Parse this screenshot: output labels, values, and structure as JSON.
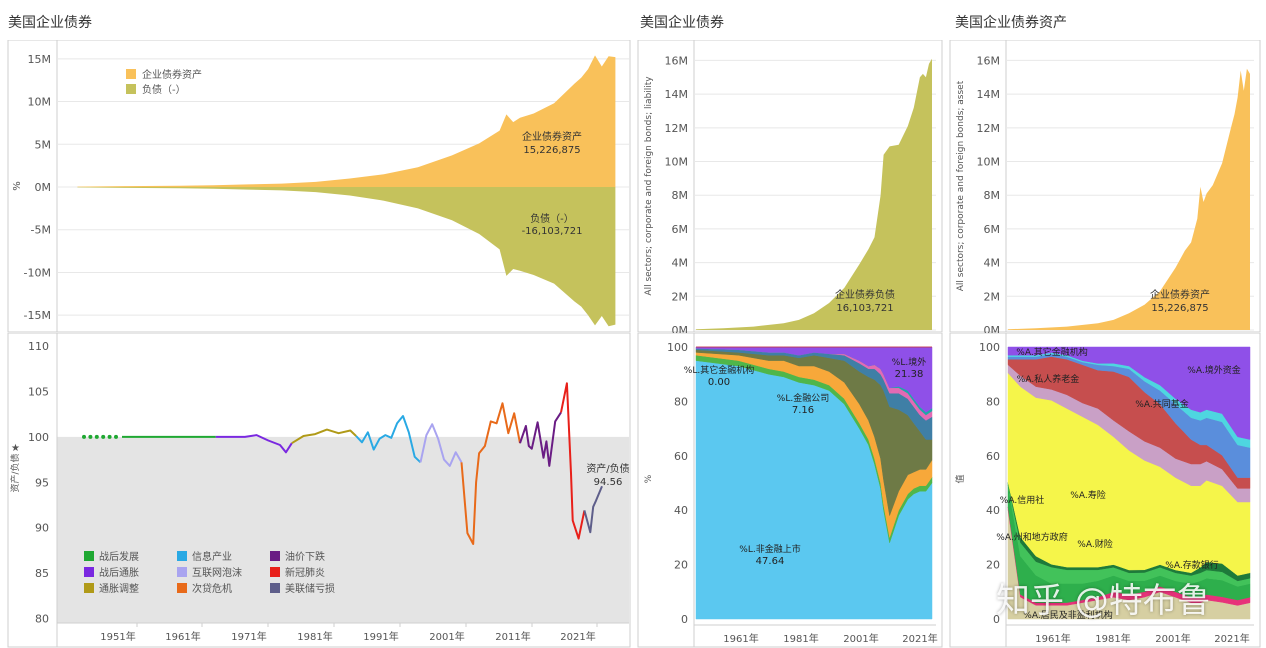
{
  "titles": {
    "left": "美国企业债券",
    "middle": "美国企业债券",
    "right": "美国企业债券资产"
  },
  "colors": {
    "asset": "#F9C15A",
    "liability": "#C5C25C",
    "ratio_background": "#E4E4E4",
    "grid": "#E8E8E8",
    "border": "#CFCFCF"
  },
  "watermark": "知乎 @特布鲁",
  "chart_data": [
    {
      "id": "main-area",
      "type": "area",
      "ylabel": "%",
      "yticks": [
        "15M",
        "10M",
        "5M",
        "0M",
        "-5M",
        "-10M",
        "-15M"
      ],
      "ylim": [
        -16.5,
        16.5
      ],
      "unit": "M",
      "legend": [
        "企业债券资产",
        "负债（-）"
      ],
      "legend_position": "top-left",
      "x": [
        1945,
        1952,
        1960,
        1965,
        1970,
        1975,
        1980,
        1985,
        1990,
        1995,
        2000,
        2004,
        2007,
        2008,
        2009,
        2010,
        2012,
        2015,
        2018,
        2019,
        2020,
        2021,
        2022,
        2023,
        2024
      ],
      "series": [
        {
          "name": "企业债券资产",
          "values": [
            0.05,
            0.1,
            0.15,
            0.2,
            0.3,
            0.4,
            0.6,
            1.0,
            1.5,
            2.3,
            3.7,
            5.1,
            6.6,
            8.5,
            7.6,
            8.1,
            8.6,
            9.8,
            12.1,
            12.8,
            13.8,
            15.4,
            14.1,
            15.3,
            15.2
          ]
        },
        {
          "name": "负债（-）",
          "values": [
            -0.05,
            -0.1,
            -0.15,
            -0.2,
            -0.3,
            -0.4,
            -0.6,
            -1.0,
            -1.6,
            -2.5,
            -3.9,
            -5.5,
            -7.3,
            -10.4,
            -9.6,
            -9.8,
            -10.3,
            -11.3,
            -13.4,
            -14.0,
            -15.0,
            -16.2,
            -15.1,
            -16.3,
            -16.1
          ]
        }
      ],
      "annotations": [
        {
          "label": "企业债券资产",
          "value": "15,226,875"
        },
        {
          "label": "负债（-）",
          "value": "-16,103,721"
        }
      ]
    },
    {
      "id": "ratio-line",
      "type": "line",
      "ylabel": "资产/负债",
      "yticks": [
        "110",
        "105",
        "100",
        "95",
        "90",
        "85",
        "80"
      ],
      "ylim": [
        79.5,
        111
      ],
      "xticks": [
        "1951年",
        "1961年",
        "1971年",
        "1981年",
        "1991年",
        "2001年",
        "2011年",
        "2021年"
      ],
      "xlim": [
        1942,
        2026
      ],
      "reference_line": 100,
      "annotation": {
        "label": "资产/负债",
        "value": "94.56"
      },
      "legend_position": "bottom-left",
      "periods": [
        {
          "name": "战后发展",
          "color": "#1FA832",
          "x": [
            1946,
            1947,
            1948,
            1949,
            1950,
            1951
          ],
          "y": [
            100,
            100,
            100,
            100,
            100,
            100
          ],
          "dotted": true
        },
        {
          "name": "战后发展",
          "color": "#1FA832",
          "x": [
            1952,
            1960,
            1968
          ],
          "y": [
            100,
            100,
            100
          ]
        },
        {
          "name": "战后通胀",
          "color": "#7A28E0",
          "x": [
            1968,
            1973,
            1975,
            1977,
            1979,
            1980,
            1981
          ],
          "y": [
            100,
            100,
            100.2,
            99.6,
            99.1,
            98.3,
            99.3
          ]
        },
        {
          "name": "通胀调整",
          "color": "#B09A18",
          "x": [
            1981,
            1983,
            1985,
            1987,
            1989,
            1991,
            1992
          ],
          "y": [
            99.3,
            100.1,
            100.3,
            100.8,
            100.4,
            100.7,
            100.1
          ]
        },
        {
          "name": "信息产业",
          "color": "#29A9E4",
          "x": [
            1992,
            1993,
            1994,
            1995,
            1996,
            1997,
            1998,
            1999,
            2000,
            2001,
            2002,
            2003
          ],
          "y": [
            100.1,
            99.4,
            100.5,
            98.6,
            99.8,
            100.2,
            99.9,
            101.5,
            102.3,
            100.5,
            97.8,
            97.2
          ]
        },
        {
          "name": "互联网泡沫",
          "color": "#A9A4F0",
          "x": [
            2003,
            2004,
            2005,
            2006,
            2007,
            2008,
            2009,
            2010
          ],
          "y": [
            97.2,
            100.2,
            101.4,
            99.8,
            97.5,
            96.8,
            98.3,
            97.2
          ]
        },
        {
          "name": "次贷危机",
          "color": "#E86A1A",
          "x": [
            2010,
            2011,
            2012,
            2012.5,
            2013,
            2014,
            2015,
            2016,
            2017,
            2018,
            2019,
            2020
          ],
          "y": [
            97.2,
            89.4,
            88.2,
            95.0,
            98.2,
            99.0,
            101.7,
            101.5,
            103.7,
            100.4,
            102.6,
            99.3
          ]
        },
        {
          "name": "油价下跌",
          "color": "#6A1C84",
          "x": [
            2020,
            2021,
            2021.5,
            2022,
            2023,
            2024,
            2024.5,
            2025,
            2026,
            2027
          ],
          "y": [
            99.3,
            101.2,
            99.0,
            98.7,
            101.6,
            97.7,
            99.5,
            96.8,
            101.7,
            102.7
          ]
        },
        {
          "name": "新冠肺炎",
          "color": "#E8201A",
          "x": [
            2027,
            2028,
            2028.7,
            2029,
            2030,
            2031
          ],
          "y": [
            102.7,
            105.9,
            96.0,
            90.8,
            88.8,
            91.9
          ]
        },
        {
          "name": "美联储亏损",
          "color": "#5E5E8A",
          "x": [
            2031,
            2032,
            2032.5,
            2033,
            2034
          ],
          "y": [
            91.9,
            89.5,
            92.3,
            93.0,
            94.56
          ]
        }
      ],
      "legend": [
        "战后发展",
        "信息产业",
        "油价下跌",
        "战后通胀",
        "互联网泡沫",
        "新冠肺炎",
        "通胀调整",
        "次贷危机",
        "美联储亏损"
      ]
    },
    {
      "id": "liability-area",
      "type": "area",
      "ylabel": "All sectors; corporate and foreign bonds; liability",
      "yticks": [
        "16M",
        "14M",
        "12M",
        "10M",
        "8M",
        "6M",
        "4M",
        "2M",
        "0M"
      ],
      "ylim": [
        0,
        16.5
      ],
      "x": [
        1946,
        1955,
        1965,
        1975,
        1980,
        1985,
        1990,
        1995,
        2000,
        2003,
        2005,
        2007,
        2008,
        2010,
        2013,
        2016,
        2018,
        2020,
        2021,
        2022,
        2023,
        2024
      ],
      "values": [
        0.05,
        0.1,
        0.2,
        0.4,
        0.6,
        1.0,
        1.6,
        2.5,
        3.9,
        4.8,
        5.5,
        8.0,
        10.4,
        10.9,
        11.0,
        12.1,
        13.2,
        15.0,
        15.2,
        15.0,
        15.8,
        16.1
      ],
      "annotation": {
        "label": "企业债券负债",
        "value": "16,103,721"
      }
    },
    {
      "id": "asset-area",
      "type": "area",
      "ylabel": "All sectors; corporate and foreign bonds; asset",
      "yticks": [
        "16M",
        "14M",
        "12M",
        "10M",
        "8M",
        "6M",
        "4M",
        "2M",
        "0M"
      ],
      "ylim": [
        0,
        16.5
      ],
      "x": [
        1946,
        1955,
        1965,
        1975,
        1980,
        1985,
        1990,
        1995,
        2000,
        2003,
        2005,
        2007,
        2008,
        2009,
        2010,
        2012,
        2015,
        2018,
        2019,
        2020,
        2021,
        2022,
        2023,
        2024
      ],
      "values": [
        0.05,
        0.1,
        0.2,
        0.4,
        0.6,
        1.0,
        1.5,
        2.3,
        3.7,
        4.7,
        5.2,
        6.6,
        8.5,
        7.6,
        8.1,
        8.6,
        9.9,
        12.1,
        12.8,
        13.8,
        15.4,
        14.2,
        15.5,
        15.2
      ],
      "annotation": {
        "label": "企业债券资产",
        "value": "15,226,875"
      }
    },
    {
      "id": "liability-shares",
      "type": "area",
      "stacked": "percent",
      "ylabel": "%",
      "yticks": [
        "100",
        "80",
        "60",
        "40",
        "20",
        "0"
      ],
      "xticks": [
        "1961年",
        "1981年",
        "2001年",
        "2021年"
      ],
      "xlim": [
        1945,
        2026
      ],
      "x": [
        1946,
        1960,
        1970,
        1975,
        1980,
        1985,
        1990,
        1995,
        2000,
        2003,
        2005,
        2007,
        2008,
        2010,
        2013,
        2016,
        2018,
        2020,
        2022,
        2024
      ],
      "series": [
        {
          "name": "%L.非金融上市",
          "color": "#5BC8F0",
          "values": [
            95,
            93,
            90,
            89,
            87,
            86,
            84,
            79,
            70,
            64,
            57,
            48,
            40,
            28,
            38,
            44,
            46,
            47,
            47,
            47.64
          ]
        },
        {
          "name": "",
          "color": "#4FB64A",
          "values": [
            2,
            2,
            2,
            2,
            2,
            2,
            2,
            2,
            2,
            2,
            2,
            2,
            2,
            2,
            2,
            2,
            2,
            2,
            2,
            2
          ]
        },
        {
          "name": "",
          "color": "#F7A83A",
          "values": [
            1,
            2,
            3,
            4,
            4,
            5,
            5,
            6,
            7,
            7,
            8,
            9,
            9,
            8,
            7,
            7,
            6,
            6,
            6,
            6
          ]
        },
        {
          "name": "%L.金融公司",
          "color": "#6E7A46",
          "values": [
            1,
            1,
            2,
            2,
            3,
            4,
            5,
            8,
            12,
            16,
            21,
            27,
            33,
            40,
            30,
            22,
            18,
            14,
            11,
            7.16
          ]
        },
        {
          "name": "",
          "color": "#3F7FA6",
          "values": [
            0.5,
            1,
            1,
            1,
            1,
            1,
            1.5,
            2,
            3,
            3,
            4,
            4,
            4,
            5,
            6,
            6,
            6,
            6,
            7,
            8
          ]
        },
        {
          "name": "",
          "color": "#E36AB4",
          "values": [
            0,
            0,
            0,
            0,
            0,
            0,
            0,
            0.5,
            1,
            1,
            1.5,
            2,
            2,
            2,
            2,
            2,
            2,
            2,
            2,
            2
          ]
        },
        {
          "name": "",
          "color": "#1FA7A7",
          "values": [
            0,
            0,
            0,
            0,
            0,
            0,
            0,
            0,
            0,
            0,
            0,
            0,
            0,
            0,
            0.5,
            1,
            1,
            1,
            1,
            1
          ]
        },
        {
          "name": "%L.境外",
          "color": "#8F50E8",
          "values": [
            0.5,
            1,
            2,
            2,
            3,
            2,
            2.5,
            2.5,
            5,
            7,
            6.5,
            8,
            10,
            15,
            14.5,
            16,
            19,
            22,
            24,
            21.38
          ]
        },
        {
          "name": "%L.其它金融机构",
          "color": "#C92E2E",
          "values": [
            0,
            0,
            0,
            0,
            0,
            0,
            0,
            0,
            0,
            0,
            0,
            0,
            0,
            0,
            0,
            0,
            0,
            0,
            0,
            0
          ]
        }
      ],
      "labels": [
        {
          "label": "%L.境外",
          "value": "21.38"
        },
        {
          "label": "%L.其它金融机构",
          "value": "0.00"
        },
        {
          "label": "%L.金融公司",
          "value": "7.16"
        },
        {
          "label": "%L.非金融上市",
          "value": "47.64"
        }
      ]
    },
    {
      "id": "asset-shares",
      "type": "area",
      "stacked": "percent",
      "ylabel": "值",
      "yticks": [
        "100",
        "80",
        "60",
        "40",
        "20",
        "0"
      ],
      "xticks": [
        "1961年",
        "1981年",
        "2001年",
        "2021年"
      ],
      "xlim": [
        1945,
        2026
      ],
      "x": [
        1946,
        1950,
        1955,
        1960,
        1965,
        1970,
        1975,
        1980,
        1985,
        1990,
        1995,
        2000,
        2005,
        2008,
        2010,
        2015,
        2020,
        2024
      ],
      "series": [
        {
          "name": "%A.居民及非盈利机构",
          "color": "#D6CFA2",
          "values": [
            40,
            8,
            5,
            5,
            5,
            6,
            7,
            8,
            7,
            8,
            10,
            8,
            6,
            6,
            7,
            6,
            5,
            6
          ]
        },
        {
          "name": "",
          "color": "#E7327A",
          "values": [
            1,
            1,
            1,
            1,
            1,
            1,
            1,
            2,
            2,
            2,
            2,
            2,
            2,
            2,
            2,
            2,
            2,
            2
          ]
        },
        {
          "name": "%A.存款银行",
          "color": "#2EAF4C",
          "values": [
            8,
            14,
            10,
            7,
            7,
            6,
            6,
            6,
            5,
            4,
            4,
            4,
            5,
            6,
            6,
            6,
            5,
            5
          ]
        },
        {
          "name": "%A.州和地方政府",
          "color": "#42C25A",
          "values": [
            0.5,
            5,
            5,
            6,
            5,
            5,
            4,
            3,
            3,
            3,
            3,
            3,
            3,
            3,
            3,
            3,
            2,
            2
          ]
        },
        {
          "name": "%A.信用社",
          "color": "#1E7A3A",
          "values": [
            0.5,
            2,
            2,
            1,
            1,
            1,
            1,
            1,
            1,
            1,
            1,
            1,
            1,
            2,
            3,
            3,
            2,
            2
          ]
        },
        {
          "name": "%A.寿险",
          "color": "#F5F54A",
          "values": [
            40,
            55,
            58,
            60,
            58,
            55,
            52,
            47,
            44,
            40,
            36,
            34,
            32,
            30,
            30,
            28,
            27,
            26
          ]
        },
        {
          "name": "%A.财险",
          "color": "#C9A0C6",
          "values": [
            3,
            4,
            4,
            4,
            5,
            5,
            6,
            6,
            7,
            7,
            7,
            7,
            8,
            8,
            7,
            6,
            5,
            5
          ]
        },
        {
          "name": "%A.私人养老金",
          "color": "#C64E4E",
          "values": [
            2,
            6,
            10,
            12,
            13,
            14,
            14,
            18,
            20,
            18,
            16,
            13,
            9,
            7,
            6,
            5,
            4,
            4
          ]
        },
        {
          "name": "%A.共同基金",
          "color": "#5A8EDC",
          "values": [
            1,
            1,
            1,
            1,
            1,
            1,
            2,
            2,
            3,
            4,
            5,
            7,
            8,
            9,
            10,
            12,
            12,
            11
          ]
        },
        {
          "name": "",
          "color": "#4ED6E0",
          "values": [
            0.5,
            0.5,
            0.5,
            0.5,
            0.5,
            0.5,
            0.5,
            1,
            1,
            1.5,
            2,
            2,
            3,
            3,
            3,
            3,
            3,
            3
          ]
        },
        {
          "name": "%A.境外资金",
          "color": "#8F50E8",
          "values": [
            3,
            3,
            3,
            2,
            3,
            5,
            6,
            6,
            7,
            11,
            14,
            19,
            23,
            24,
            23,
            24,
            33,
            34
          ]
        }
      ],
      "labels": [
        {
          "label": "%A.其它金融机构"
        },
        {
          "label": "%A.境外资金"
        },
        {
          "label": "%A.私人养老金"
        },
        {
          "label": "%A.共同基金"
        },
        {
          "label": "%A.寿险"
        },
        {
          "label": "%A.信用社"
        },
        {
          "label": "%A.州和地方政府"
        },
        {
          "label": "%A.财险"
        },
        {
          "label": "%A.存款银行"
        },
        {
          "label": "%A.居民及非盈利机构"
        }
      ]
    }
  ]
}
